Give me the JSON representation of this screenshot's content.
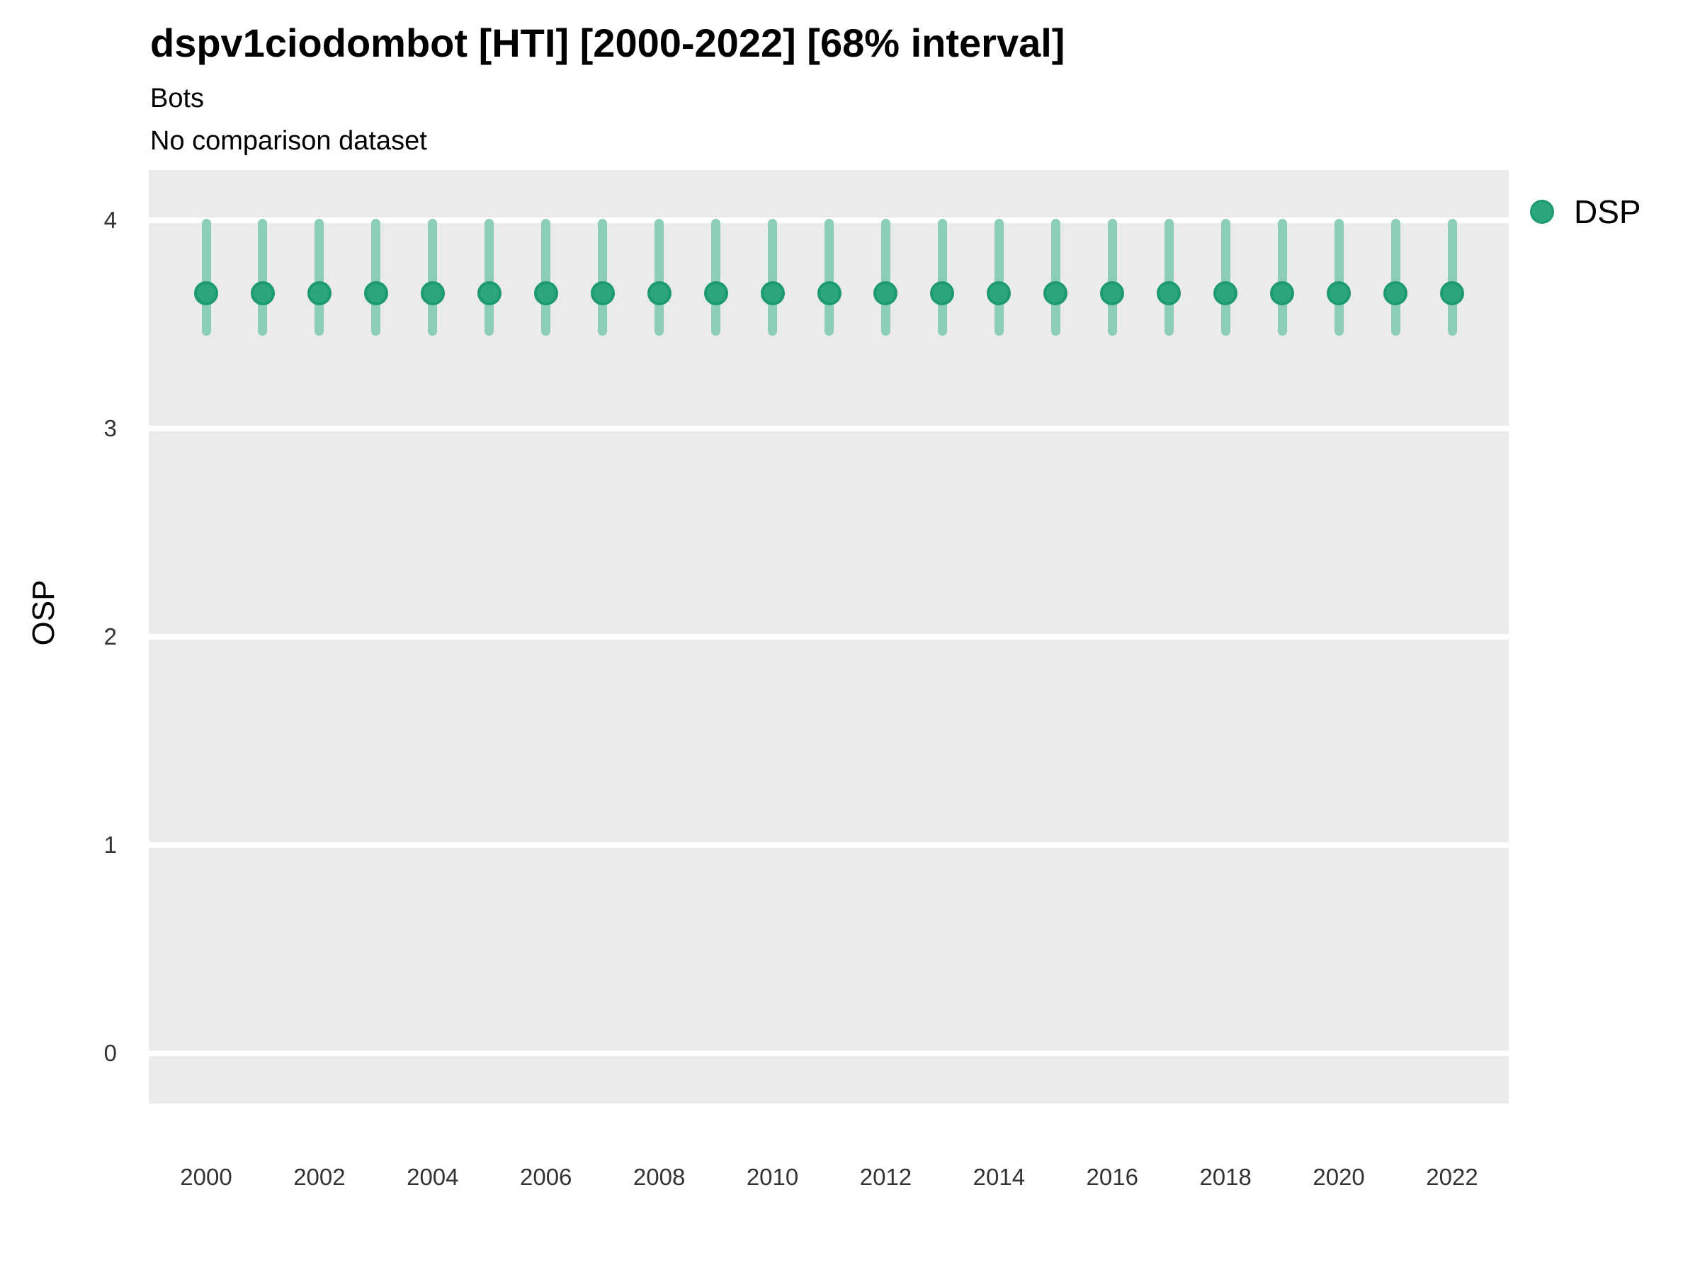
{
  "title": "dspv1ciodombot [HTI] [2000-2022] [68% interval]",
  "subtitle": "Bots",
  "comparison_note": "No comparison dataset",
  "legend": {
    "position": "right",
    "items": [
      {
        "label": "DSP",
        "color": "#2aa57e",
        "stroke": "#1e9a70"
      }
    ]
  },
  "colors": {
    "panel_background": "#ebebeb",
    "gridline": "#ffffff",
    "point_fill": "#2aa57e",
    "point_stroke": "#1e9a70",
    "interval_bar": "#8ccdb9",
    "tick_text": "#333333",
    "title_text": "#000000"
  },
  "chart_data": {
    "type": "scatter",
    "subtype": "pointrange",
    "title": "dspv1ciodombot [HTI] [2000-2022] [68% interval]",
    "subtitle": "Bots",
    "note": "No comparison dataset",
    "xlabel": "",
    "ylabel": "OSP",
    "interval_level": "68%",
    "grid": "major-horizontal-only",
    "legend_position": "right",
    "ylim": [
      -0.24,
      4.24
    ],
    "yticks": [
      0,
      1,
      2,
      3,
      4
    ],
    "xticks": [
      2000,
      2002,
      2004,
      2006,
      2008,
      2010,
      2012,
      2014,
      2016,
      2018,
      2020,
      2022
    ],
    "x": [
      2000,
      2001,
      2002,
      2003,
      2004,
      2005,
      2006,
      2007,
      2008,
      2009,
      2010,
      2011,
      2012,
      2013,
      2014,
      2015,
      2016,
      2017,
      2018,
      2019,
      2020,
      2021,
      2022
    ],
    "series": [
      {
        "name": "DSP",
        "values": [
          3.65,
          3.65,
          3.65,
          3.65,
          3.65,
          3.65,
          3.65,
          3.65,
          3.65,
          3.65,
          3.65,
          3.65,
          3.65,
          3.65,
          3.65,
          3.65,
          3.65,
          3.65,
          3.65,
          3.65,
          3.65,
          3.65,
          3.65
        ],
        "lower": [
          3.45,
          3.45,
          3.45,
          3.45,
          3.45,
          3.45,
          3.45,
          3.45,
          3.45,
          3.45,
          3.45,
          3.45,
          3.45,
          3.45,
          3.45,
          3.45,
          3.45,
          3.45,
          3.45,
          3.45,
          3.45,
          3.45,
          3.45
        ],
        "upper": [
          4.0,
          4.0,
          4.0,
          4.0,
          4.0,
          4.0,
          4.0,
          4.0,
          4.0,
          4.0,
          4.0,
          4.0,
          4.0,
          4.0,
          4.0,
          4.0,
          4.0,
          4.0,
          4.0,
          4.0,
          4.0,
          4.0,
          4.0
        ]
      }
    ]
  }
}
